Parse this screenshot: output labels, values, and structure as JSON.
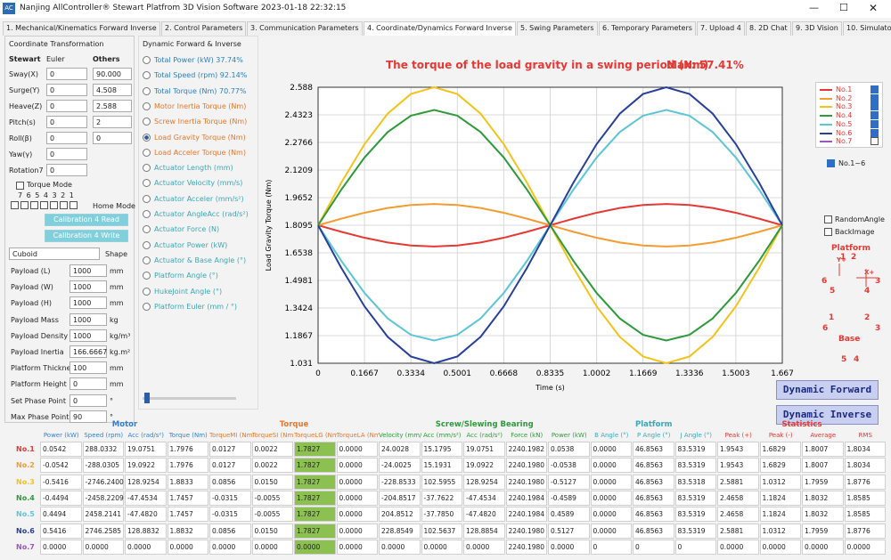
{
  "window": {
    "title": "Nanjing AllController® Stewart Platfrom 3D Vision Software 2023-01-18 22:32:15"
  },
  "tabs": [
    "1. Mechanical/Kinematics Forward Inverse",
    "2. Control Parameters",
    "3. Communication Parameters",
    "4. Coordinate/Dynamics Forward Inverse",
    "5. Swing Parameters",
    "6. Temporary Parameters",
    "7. Upload 4",
    "8. 2D Chat",
    "9. 3D Vision",
    "10. Simulator",
    "11. About"
  ],
  "active_tab": 3,
  "coord": {
    "title": "Coordinate Transformation",
    "headers": [
      "Stewart",
      "Euler",
      "Others"
    ],
    "rows": [
      {
        "label": "Sway(X)",
        "euler": "0",
        "other": "90.000"
      },
      {
        "label": "Surge(Y)",
        "euler": "0",
        "other": "4.508"
      },
      {
        "label": "Heave(Z)",
        "euler": "0",
        "other": "2.588"
      },
      {
        "label": "Pitch(s)",
        "euler": "0",
        "other": "2"
      },
      {
        "label": "Roll(β)",
        "euler": "0",
        "other": "0"
      },
      {
        "label": "Yaw(γ)",
        "euler": "0"
      },
      {
        "label": "Rotation7",
        "euler": "0"
      }
    ]
  },
  "torque_mode": {
    "label": "Torque  Mode",
    "bits": "7 6 5 4 3 2 1",
    "home": "Home Mode"
  },
  "calibration": [
    "Calibration 4 Read",
    "Calibration 4 Write"
  ],
  "shape": {
    "value": "Cuboid",
    "label": "Shape"
  },
  "params": [
    {
      "label": "Payload (L)",
      "value": "1000",
      "unit": "mm"
    },
    {
      "label": "Payload (W)",
      "value": "1000",
      "unit": "mm"
    },
    {
      "label": "Payload (H)",
      "value": "1000",
      "unit": "mm"
    },
    {
      "label": "Payload Mass",
      "value": "1000",
      "unit": "kg"
    },
    {
      "label": "Payload Density",
      "value": "1000",
      "unit": "kg/m³"
    },
    {
      "label": "Payload Inertia",
      "value": "166.6667",
      "unit": "kg.m²"
    },
    {
      "label": "Platform Thickness",
      "value": "100",
      "unit": "mm"
    },
    {
      "label": "Platform Height",
      "value": "0",
      "unit": "mm"
    },
    {
      "label": "Set Phase Point",
      "value": "0",
      "unit": "°"
    },
    {
      "label": "Max Phase Point",
      "value": "90",
      "unit": "°"
    }
  ],
  "dynamic": {
    "title": "Dynamic Forward & Inverse",
    "selected": 5,
    "options": [
      "Total Power (kW) 37.74%",
      "Total Speed (rpm) 92.14%",
      "Total Torque (Nm) 70.77%",
      "Motor Inertia Torque (Nm)",
      "Screw Inertia Torque (Nm)",
      "Load Gravity Torque (Nm)",
      "Load Acceler Torque (Nm)",
      "Actuator Length (mm)",
      "Actuator Velocity (mm/s)",
      "Actuator Acceler (mm/s²)",
      "Actuator AngleAcc (rad/s²)",
      "Actuator Force (N)",
      "Actuator Power (kW)",
      "Actuator & Base Angle (°)",
      "Platform Angle (°)",
      "HukeJoint Angle (°)",
      "Platform Euler (mm / °)"
    ]
  },
  "chart": {
    "type": "line",
    "title": "The torque of the load gravity in a swing period (Nm)",
    "max_label": "Max: 57.41%",
    "x_label": "Time (s)",
    "y_label": "Load Gravity Torque (Nm)",
    "grid": true,
    "x": [
      0,
      0.08335,
      0.1667,
      0.25005,
      0.3334,
      0.41675,
      0.5001,
      0.58345,
      0.6668,
      0.75015,
      0.8335,
      0.91685,
      1.0002,
      1.08355,
      1.1669,
      1.25025,
      1.3336,
      1.41695,
      1.5003,
      1.58365,
      1.667
    ],
    "xlim": [
      0,
      1.667
    ],
    "xticks": [
      0,
      0.1667,
      0.3334,
      0.5001,
      0.6668,
      0.8335,
      1.0002,
      1.1669,
      1.3336,
      1.5003,
      1.667
    ],
    "ylim": [
      1.031,
      2.588
    ],
    "yticks": [
      1.031,
      1.1867,
      1.3424,
      1.4981,
      1.6538,
      1.8095,
      1.9652,
      2.1209,
      2.2766,
      2.4323,
      2.588
    ],
    "series": [
      {
        "name": "No.1",
        "color": "#e53935",
        "visible": true,
        "values": [
          1.8095,
          1.7724,
          1.739,
          1.7124,
          1.6954,
          1.6895,
          1.6954,
          1.7124,
          1.739,
          1.7724,
          1.8095,
          1.8466,
          1.88,
          1.9066,
          1.9236,
          1.9295,
          1.9236,
          1.9066,
          1.88,
          1.8466,
          1.8095
        ]
      },
      {
        "name": "No.2",
        "color": "#f39c32",
        "visible": true,
        "values": [
          1.8095,
          1.8466,
          1.88,
          1.9066,
          1.9236,
          1.9295,
          1.9236,
          1.9066,
          1.88,
          1.8466,
          1.8095,
          1.7724,
          1.739,
          1.7124,
          1.6954,
          1.6895,
          1.6954,
          1.7124,
          1.739,
          1.7724,
          1.8095
        ]
      },
      {
        "name": "No.3",
        "color": "#f2c31b",
        "visible": true,
        "values": [
          1.8095,
          2.0501,
          2.2671,
          2.4393,
          2.5499,
          2.588,
          2.5499,
          2.4393,
          2.2671,
          2.0501,
          1.8095,
          1.5689,
          1.3519,
          1.1797,
          1.0691,
          1.031,
          1.0691,
          1.1797,
          1.3519,
          1.5689,
          1.8095
        ]
      },
      {
        "name": "No.4",
        "color": "#2e9a3c",
        "visible": true,
        "values": [
          1.8095,
          2.0104,
          2.1916,
          2.3354,
          2.4277,
          2.4595,
          2.4277,
          2.3354,
          2.1916,
          2.0104,
          1.8095,
          1.6086,
          1.4274,
          1.2836,
          1.1913,
          1.1595,
          1.1913,
          1.2836,
          1.4274,
          1.6086,
          1.8095
        ]
      },
      {
        "name": "No.5",
        "color": "#5cc6d6",
        "visible": true,
        "values": [
          1.8095,
          1.6086,
          1.4274,
          1.2836,
          1.1913,
          1.1595,
          1.1913,
          1.2836,
          1.4274,
          1.6086,
          1.8095,
          2.0104,
          2.1916,
          2.3354,
          2.4277,
          2.4595,
          2.4277,
          2.3354,
          2.1916,
          2.0104,
          1.8095
        ]
      },
      {
        "name": "No.6",
        "color": "#27409a",
        "visible": true,
        "values": [
          1.8095,
          1.5689,
          1.3519,
          1.1797,
          1.0691,
          1.031,
          1.0691,
          1.1797,
          1.3519,
          1.5689,
          1.8095,
          2.0501,
          2.2671,
          2.4393,
          2.5499,
          2.588,
          2.5499,
          2.4393,
          2.2671,
          2.0501,
          1.8095
        ]
      },
      {
        "name": "No.7",
        "color": "#a055c0",
        "visible": false,
        "values": [
          null,
          null,
          null,
          null,
          null,
          null,
          null,
          null,
          null,
          null,
          null,
          null,
          null,
          null,
          null,
          null,
          null,
          null,
          null,
          null,
          null
        ]
      }
    ]
  },
  "group_toggle": "No.1~6",
  "options": [
    "RandomAngle",
    "BackImage"
  ],
  "diagram": {
    "platform": "Platform",
    "base": "Base",
    "axes": [
      "Y+",
      "X+"
    ],
    "platform_numbers": [
      "1",
      "2",
      "3",
      "4",
      "5",
      "6"
    ],
    "base_numbers": [
      "1",
      "2",
      "3",
      "4",
      "5",
      "6"
    ]
  },
  "actions": [
    "Dynamic Forward",
    "Dynamic Inverse"
  ],
  "table": {
    "groups": [
      "Motor",
      "Torque",
      "Screw/Slewing Bearing",
      "Platform",
      "Statistics"
    ],
    "columns": [
      "Power (kW)",
      "Speed (rpm)",
      "Acc (rad/s²)",
      "Torque (Nm)",
      "TorqueMI (Nm)",
      "TorqueSI (Nm)",
      "TorqueLG (Nm)",
      "TorqueLA (Nm)",
      "Velocity (mm/s)",
      "Acc (mm/s²)",
      "Acc (rad/s²)",
      "Force (kN)",
      "Power (kW)",
      "B Angle (°)",
      "P Angle (°)",
      "J Angle (°)",
      "Peak (+)",
      "Peak (-)",
      "Average",
      "RMS"
    ],
    "rows": [
      {
        "label": "No.1",
        "cells": [
          "0.0542",
          "288.0332",
          "19.0751",
          "1.7976",
          "0.0127",
          "0.0022",
          "1.7827",
          "0.0000",
          "24.0028",
          "15.1795",
          "19.0751",
          "2240.1982",
          "0.0538",
          "0.0000",
          "46.8563",
          "83.5319",
          "1.9543",
          "1.6829",
          "1.8007",
          "1.8034"
        ]
      },
      {
        "label": "No.2",
        "cells": [
          "-0.0542",
          "-288.0305",
          "19.0922",
          "1.7976",
          "0.0127",
          "0.0022",
          "1.7827",
          "0.0000",
          "-24.0025",
          "15.1931",
          "19.0922",
          "2240.1980",
          "-0.0538",
          "0.0000",
          "46.8563",
          "83.5319",
          "1.9543",
          "1.6829",
          "1.8007",
          "1.8034"
        ]
      },
      {
        "label": "No.3",
        "cells": [
          "-0.5416",
          "-2746.2400",
          "128.9254",
          "1.8833",
          "0.0856",
          "0.0150",
          "1.7827",
          "0.0000",
          "-228.8533",
          "102.5955",
          "128.9254",
          "2240.1980",
          "-0.5127",
          "0.0000",
          "46.8563",
          "83.5318",
          "2.5881",
          "1.0312",
          "1.7959",
          "1.8776"
        ]
      },
      {
        "label": "No.4",
        "cells": [
          "-0.4494",
          "-2458.2209",
          "-47.4534",
          "1.7457",
          "-0.0315",
          "-0.0055",
          "1.7827",
          "0.0000",
          "-204.8517",
          "-37.7622",
          "-47.4534",
          "2240.1984",
          "-0.4589",
          "0.0000",
          "46.8563",
          "83.5319",
          "2.4658",
          "1.1824",
          "1.8032",
          "1.8585"
        ]
      },
      {
        "label": "No.5",
        "cells": [
          "0.4494",
          "2458.2141",
          "-47.4820",
          "1.7457",
          "-0.0315",
          "-0.0055",
          "1.7827",
          "0.0000",
          "204.8512",
          "-37.7850",
          "-47.4820",
          "2240.1984",
          "0.4589",
          "0.0000",
          "46.8563",
          "83.5319",
          "2.4658",
          "1.1824",
          "1.8032",
          "1.8585"
        ]
      },
      {
        "label": "No.6",
        "cells": [
          "0.5416",
          "2746.2585",
          "128.8832",
          "1.8832",
          "0.0856",
          "0.0150",
          "1.7827",
          "0.0000",
          "228.8549",
          "102.5637",
          "128.8854",
          "2240.1980",
          "0.5127",
          "0.0000",
          "46.8563",
          "83.5319",
          "2.5881",
          "1.0312",
          "1.7959",
          "1.8776"
        ]
      },
      {
        "label": "No.7",
        "cells": [
          "0.0000",
          "0.0000",
          "0.0000",
          "0.0000",
          "0.0000",
          "0.0000",
          "0.0000",
          "0.0000",
          "0.0000",
          "0.0000",
          "0.0000",
          "2240.1980",
          "0.0000",
          "0",
          "0",
          "0",
          "0.0000",
          "0.0000",
          "0.0000",
          "0.0000"
        ]
      }
    ]
  }
}
